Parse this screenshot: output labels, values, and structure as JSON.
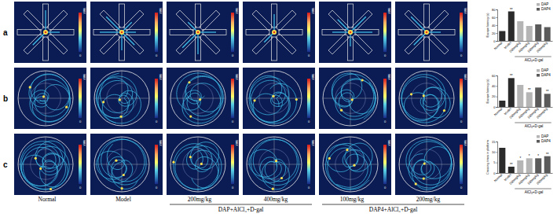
{
  "chart_data": [
    {
      "type": "bar",
      "y_label": "Escape latency (s)",
      "categories": [
        "Normal",
        "Model",
        "200mg/kg",
        "400mg/kg",
        "100mg/kg",
        "200mg/kg"
      ],
      "series": [
        {
          "color": "#2b2b2b",
          "values": [
            25,
            75,
            null,
            null,
            null,
            null
          ]
        },
        {
          "name": "DAP",
          "color": "#b5b5b5",
          "values": [
            null,
            null,
            50,
            38,
            null,
            null
          ]
        },
        {
          "name": "DAP4",
          "color": "#5a5a5a",
          "values": [
            null,
            null,
            null,
            null,
            42,
            35
          ]
        }
      ],
      "annotations": [
        null,
        "**",
        null,
        null,
        null,
        null
      ],
      "group_label": "AlCl₃+D-gal",
      "ylim": [
        0,
        80
      ],
      "yticks": [
        0,
        20,
        40,
        60,
        80
      ],
      "legend": "upper right"
    },
    {
      "type": "bar",
      "y_label": "Escape latency (s)",
      "categories": [
        "Normal",
        "Model",
        "200mg/kg",
        "400mg/kg",
        "100mg/kg",
        "200mg/kg"
      ],
      "series": [
        {
          "color": "#2b2b2b",
          "values": [
            12,
            55,
            null,
            null,
            null,
            null
          ]
        },
        {
          "name": "DAP",
          "color": "#b5b5b5",
          "values": [
            null,
            null,
            42,
            28,
            null,
            null
          ]
        },
        {
          "name": "DAP4",
          "color": "#5a5a5a",
          "values": [
            null,
            null,
            null,
            null,
            37,
            25
          ]
        }
      ],
      "annotations": [
        null,
        "**",
        null,
        "**",
        null,
        "**"
      ],
      "group_label": "AlCl₃+D-gal",
      "ylim": [
        0,
        60
      ],
      "yticks": [
        0,
        20,
        40,
        60
      ],
      "legend": "upper right"
    },
    {
      "type": "bar",
      "y_label": "Crossing times in platform",
      "categories": [
        "Normal",
        "Model",
        "200mg/kg",
        "400mg/kg",
        "100mg/kg",
        "200mg/kg"
      ],
      "series": [
        {
          "color": "#2b2b2b",
          "values": [
            12,
            3,
            null,
            null,
            null,
            null
          ]
        },
        {
          "name": "DAP",
          "color": "#b5b5b5",
          "values": [
            null,
            null,
            6,
            7,
            null,
            null
          ]
        },
        {
          "name": "DAP4",
          "color": "#5a5a5a",
          "values": [
            null,
            null,
            null,
            null,
            7,
            8
          ]
        }
      ],
      "annotations": [
        null,
        "**",
        "*",
        "*",
        "*",
        "**"
      ],
      "group_label": "AlCl₃+D-gal",
      "ylim": [
        0,
        15
      ],
      "yticks": [
        0,
        5,
        10,
        15
      ],
      "legend": "upper right"
    }
  ],
  "figure": {
    "row_labels": [
      "a",
      "b",
      "c"
    ],
    "column_labels": [
      "Normal",
      "Model",
      "200mg/kg",
      "400mg/kg",
      "100mg/kg",
      "200mg/kg"
    ],
    "group_labels": [
      "DAP+AlCl₃+D-gal",
      "DAP4+AlCl₃+D-gal"
    ],
    "colorbar_labels": [
      "MAX",
      "0"
    ]
  }
}
